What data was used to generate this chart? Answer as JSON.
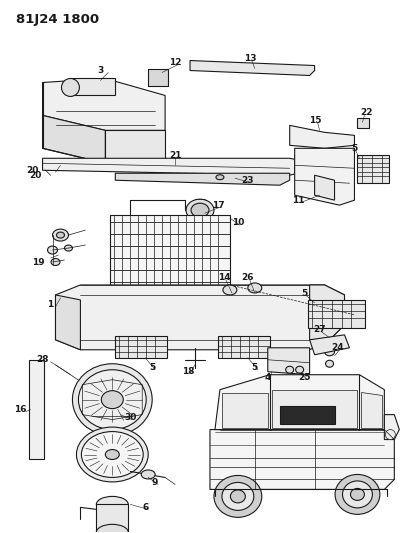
{
  "title": "81J24 1800",
  "bg": "#ffffff",
  "lc": "#1a1a1a",
  "fig_w": 4.01,
  "fig_h": 5.33,
  "dpi": 100,
  "label_fs": 6.5,
  "title_fs": 9.5
}
